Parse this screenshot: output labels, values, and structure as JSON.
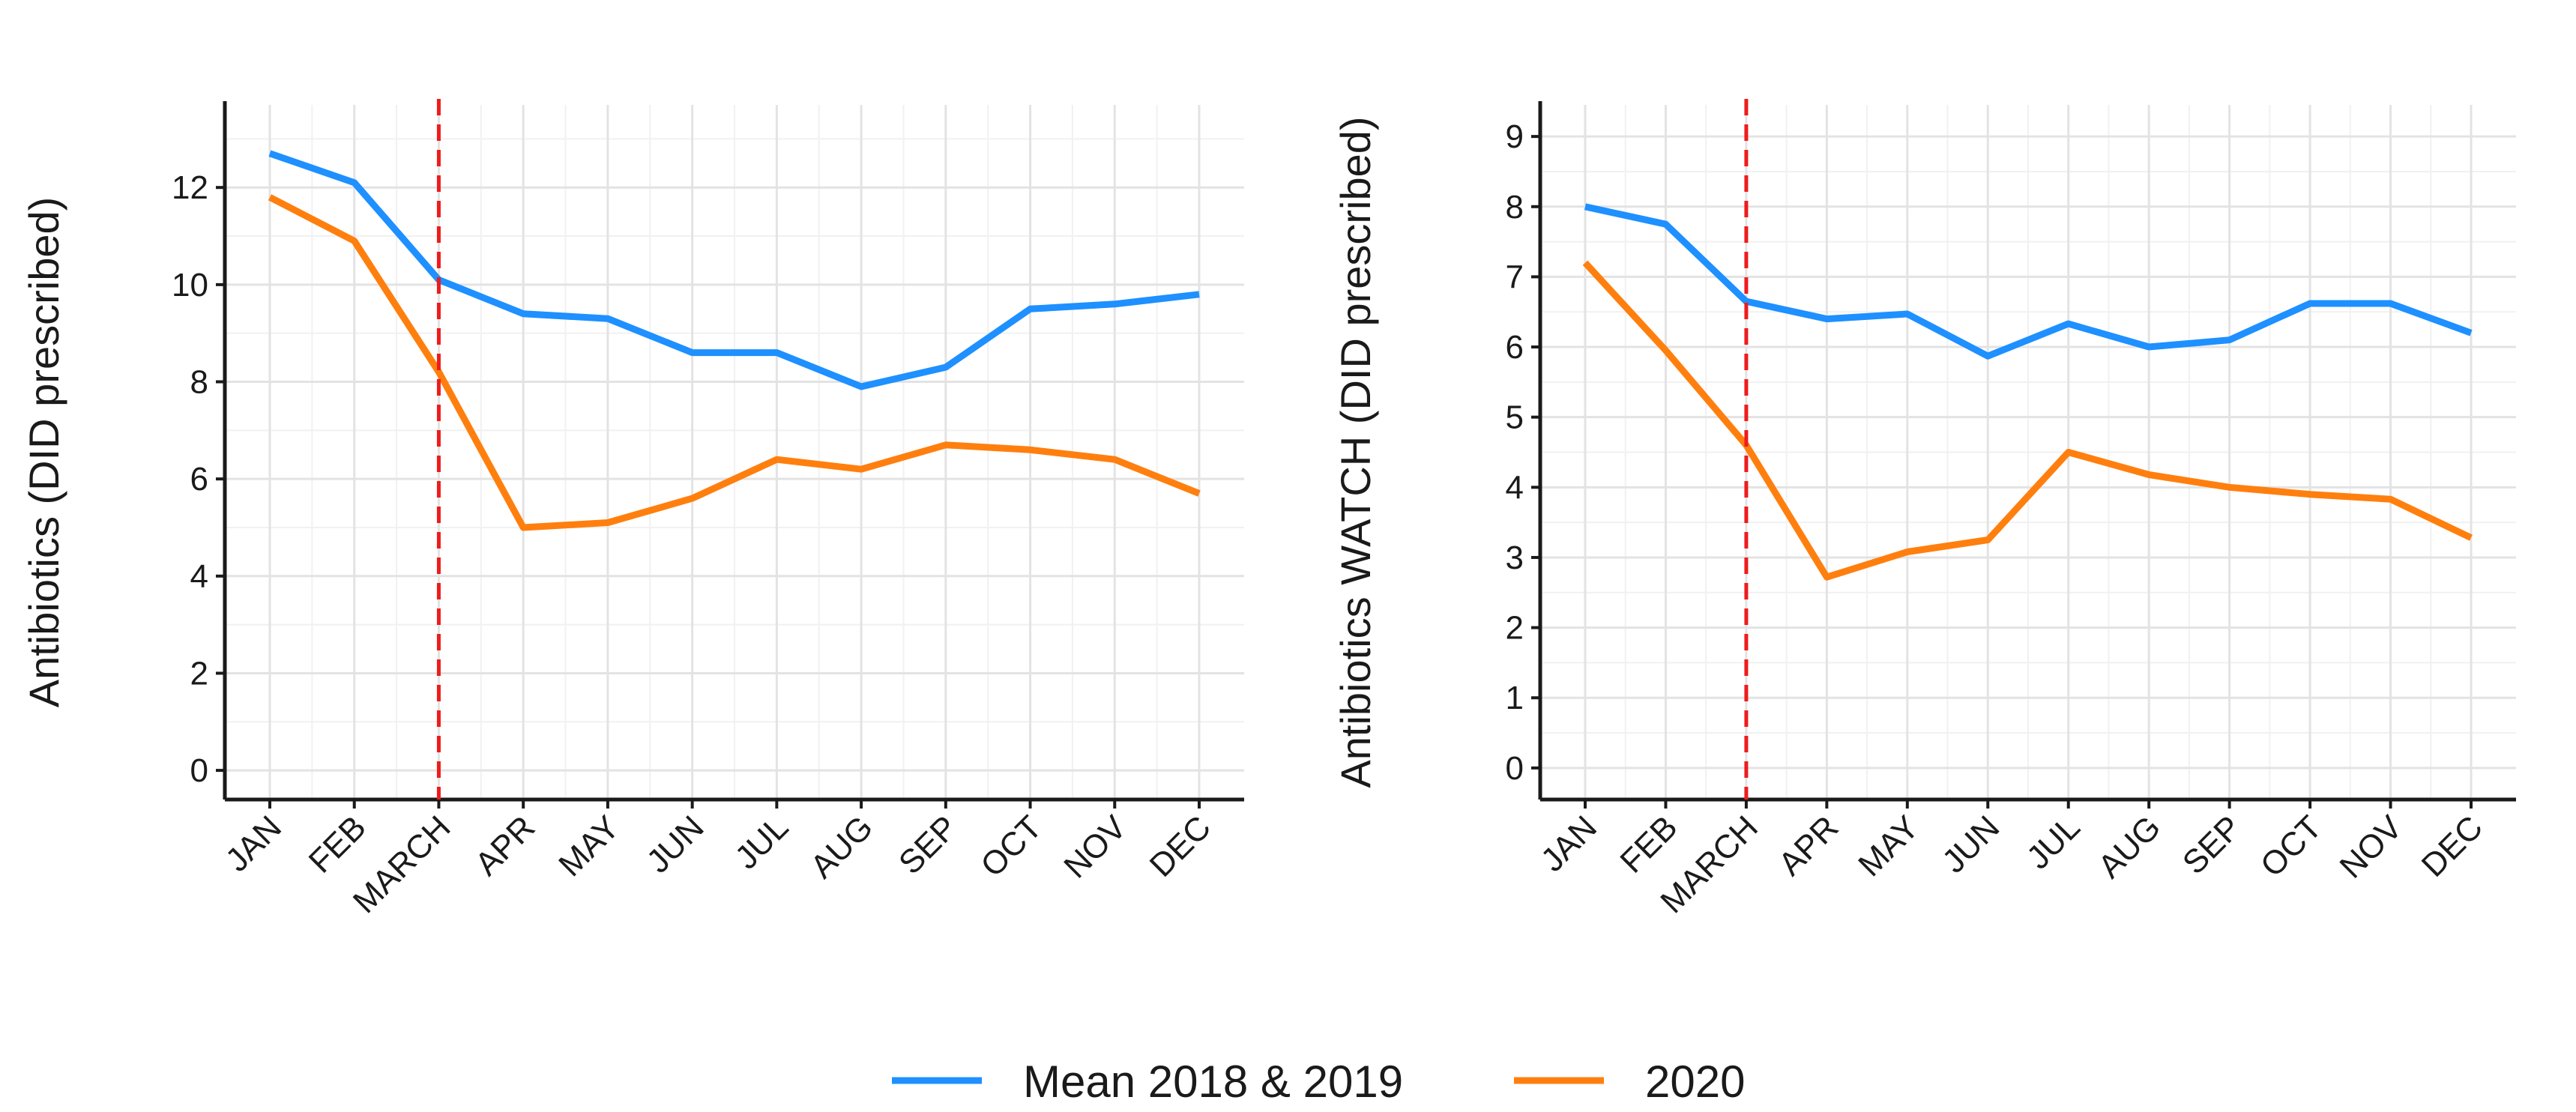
{
  "chart_data": [
    {
      "type": "line",
      "title": "",
      "xlabel": "",
      "ylabel": "Antibiotics (DID prescribed)",
      "categories": [
        "JAN",
        "FEB",
        "MARCH",
        "APR",
        "MAY",
        "JUN",
        "JUL",
        "AUG",
        "SEP",
        "OCT",
        "NOV",
        "DEC"
      ],
      "yticks": [
        "0",
        "2",
        "4",
        "6",
        "8",
        "10",
        "12"
      ],
      "ylim": [
        -0.6,
        13.7
      ],
      "grid": true,
      "vline": {
        "category": "MARCH",
        "color": "#ee1c1c",
        "style": "dashed"
      },
      "series": [
        {
          "name": "Mean 2018 & 2019",
          "color": "#1e90ff",
          "values": [
            12.7,
            12.1,
            10.1,
            9.4,
            9.3,
            8.6,
            8.6,
            7.9,
            8.3,
            9.5,
            9.6,
            9.8
          ]
        },
        {
          "name": "2020",
          "color": "#ff7f0e",
          "values": [
            11.8,
            10.9,
            8.2,
            5.0,
            5.1,
            5.6,
            6.4,
            6.2,
            6.7,
            6.6,
            6.4,
            5.7
          ]
        }
      ]
    },
    {
      "type": "line",
      "title": "",
      "xlabel": "",
      "ylabel": "Antibiotics WATCH (DID prescribed)",
      "categories": [
        "JAN",
        "FEB",
        "MARCH",
        "APR",
        "MAY",
        "JUN",
        "JUL",
        "AUG",
        "SEP",
        "OCT",
        "NOV",
        "DEC"
      ],
      "yticks": [
        "0",
        "1",
        "2",
        "3",
        "4",
        "5",
        "6",
        "7",
        "8",
        "9"
      ],
      "ylim": [
        -0.45,
        9.45
      ],
      "grid": true,
      "vline": {
        "category": "MARCH",
        "color": "#ee1c1c",
        "style": "dashed"
      },
      "series": [
        {
          "name": "Mean 2018 & 2019",
          "color": "#1e90ff",
          "values": [
            8.0,
            7.75,
            6.65,
            6.4,
            6.47,
            5.87,
            6.33,
            6.0,
            6.1,
            6.62,
            6.62,
            6.2
          ]
        },
        {
          "name": "2020",
          "color": "#ff7f0e",
          "values": [
            7.2,
            5.95,
            4.6,
            2.72,
            3.08,
            3.25,
            4.5,
            4.18,
            4.0,
            3.9,
            3.83,
            3.28
          ]
        }
      ]
    }
  ],
  "legend": {
    "position": "bottom",
    "items": [
      {
        "label": "Mean 2018 & 2019",
        "color": "#1e90ff"
      },
      {
        "label": "2020",
        "color": "#ff7f0e"
      }
    ]
  }
}
